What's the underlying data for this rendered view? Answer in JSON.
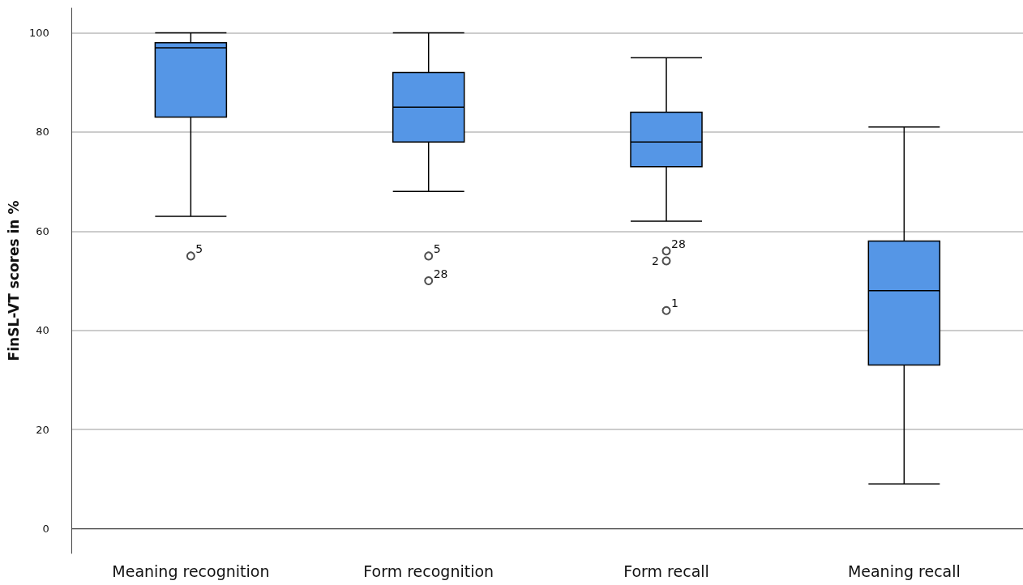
{
  "chart_data": {
    "type": "box",
    "ylabel": "FinSL-VT scores in %",
    "categories": [
      "Meaning recognition",
      "Form recognition",
      "Form recall",
      "Meaning recall"
    ],
    "color": "#5596e6",
    "boxes": [
      {
        "low": 63,
        "q1": 83,
        "median": 97,
        "q3": 98,
        "high": 100,
        "outliers": [
          55
        ]
      },
      {
        "low": 68,
        "q1": 78,
        "median": 85,
        "q3": 92,
        "high": 100,
        "outliers": [
          55,
          50
        ]
      },
      {
        "low": 62,
        "q1": 73,
        "median": 78,
        "q3": 84,
        "high": 95,
        "outliers": [
          56,
          54,
          44
        ]
      },
      {
        "low": 9,
        "q1": 33,
        "median": 48,
        "q3": 58,
        "high": 81
      }
    ],
    "annotations": [
      "5",
      "5",
      "28",
      "28",
      "2",
      "1"
    ],
    "ylim": [
      -5,
      105
    ],
    "yticks": [
      0,
      20,
      40,
      60,
      80,
      100
    ],
    "grid": "y",
    "marker": "circle"
  }
}
